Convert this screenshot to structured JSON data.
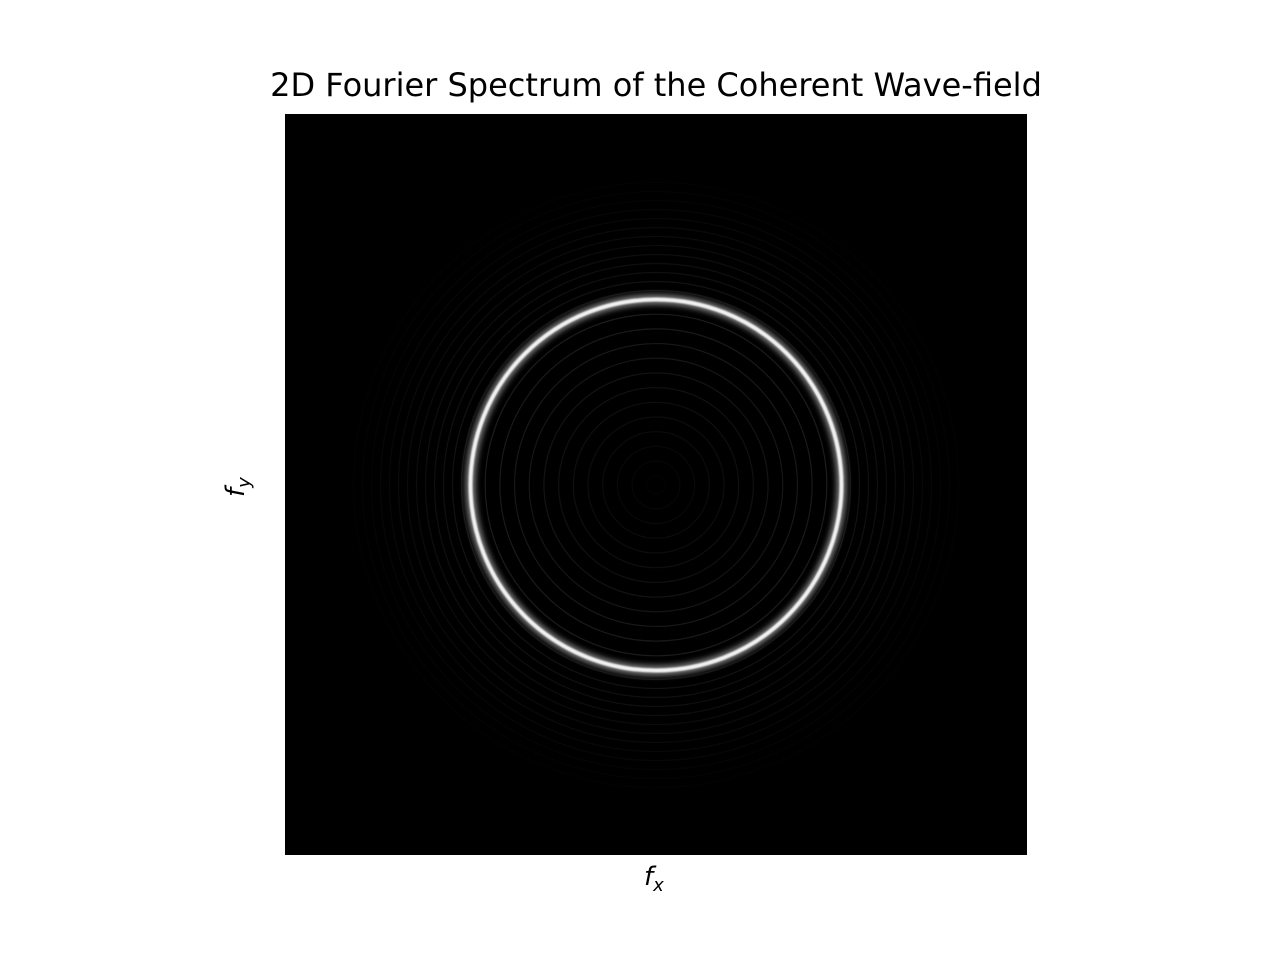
{
  "chart_data": {
    "type": "heatmap",
    "title": "2D Fourier Spectrum of the Coherent Wave-field",
    "xlabel": {
      "base": "f",
      "sub": "x"
    },
    "ylabel": {
      "base": "f",
      "sub": "y"
    },
    "colormap": "gray",
    "background_color": "#000000",
    "ring_color": "#f2f2f2",
    "ticks_visible": false,
    "features": [
      {
        "name": "ring",
        "center": [
          0,
          0
        ],
        "radius": 0.5,
        "peak_intensity": 0.95
      },
      {
        "name": "inner-fringes",
        "count": 12,
        "peak_intensity": 0.12
      },
      {
        "name": "outer-fringes",
        "count": 14,
        "peak_intensity": 0.08
      }
    ],
    "xlim": [
      -1,
      1
    ],
    "ylim": [
      -1,
      1
    ]
  }
}
